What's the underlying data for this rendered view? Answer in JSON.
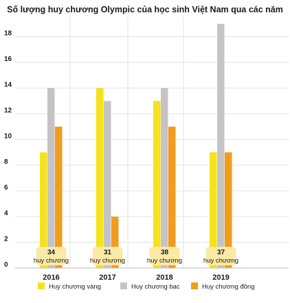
{
  "chart_data": {
    "type": "bar",
    "title": "Số lượng huy chương Olympic của học sinh Việt Nam qua các năm",
    "categories": [
      "2016",
      "2017",
      "2018",
      "2019"
    ],
    "series": [
      {
        "name": "Huy chương vàng",
        "values": [
          9,
          14,
          13,
          9
        ],
        "color": "#f5e21b"
      },
      {
        "name": "Huy chương bạc",
        "values": [
          14,
          13,
          14,
          19
        ],
        "color": "#c4c4c4"
      },
      {
        "name": "Huy chương đồng",
        "values": [
          11,
          4,
          11,
          9
        ],
        "color": "#f39c1c"
      }
    ],
    "totals": [
      {
        "value": "34",
        "label": "huy chương"
      },
      {
        "value": "31",
        "label": "huy chương"
      },
      {
        "value": "38",
        "label": "huy chương"
      },
      {
        "value": "37",
        "label": "huy chương"
      }
    ],
    "ylim": [
      0,
      19
    ],
    "yticks": [
      "0",
      "2",
      "4",
      "6",
      "8",
      "10",
      "12",
      "14",
      "16",
      "18"
    ],
    "xlabel": "",
    "ylabel": "",
    "grid": true,
    "legend_position": "bottom",
    "total_box_color": "#fbe9a6"
  }
}
